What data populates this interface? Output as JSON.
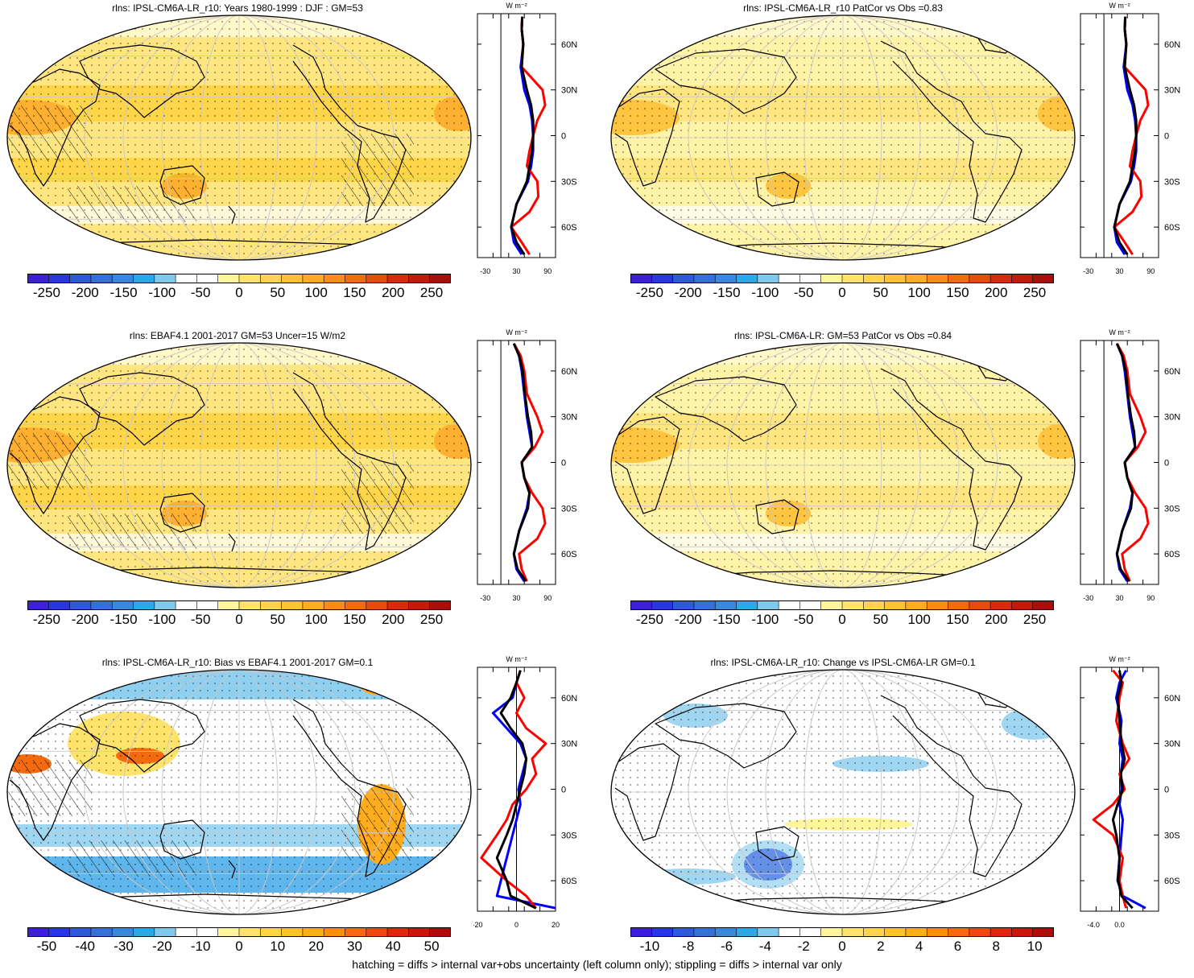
{
  "footer": "hatching = diffs > internal var+obs uncertainty (left column only); stippling = diffs > internal var only",
  "colors": {
    "model_line": "#0000ff",
    "obs_line": "#ff0000",
    "black_line": "#000000",
    "land_outline": "#000000"
  },
  "chart_data": [
    {
      "id": "p1",
      "type": "heatmap",
      "title": "rlns: IPSL-CM6A-LR_r10: Years 1980-1999 : DJF : GM=53",
      "projection": "robinson",
      "colorbar": {
        "ticks": [
          "-250",
          "-200",
          "-150",
          "-100",
          "-50",
          "0",
          "50",
          "100",
          "150",
          "200",
          "250"
        ],
        "range": [
          -275,
          275
        ],
        "colors": [
          "#3c1fd6",
          "#2a37e0",
          "#2e5ad8",
          "#3470d8",
          "#3a87de",
          "#2aa8e8",
          "#7ec9ec",
          "#ffffff",
          "#ffffff",
          "#fff59a",
          "#ffe36a",
          "#ffd34d",
          "#ffc330",
          "#ffad1f",
          "#ff8c12",
          "#f46a0e",
          "#e84b0c",
          "#d92b0b",
          "#c41a0b",
          "#aa0e0b"
        ]
      },
      "zonal": {
        "unit": "W m⁻²",
        "xticks": [
          "-30",
          "30",
          "90"
        ],
        "xrange": [
          -45,
          105
        ],
        "yticks": [
          "60N",
          "30N",
          "0",
          "30S",
          "60S"
        ],
        "ylim": [
          -80,
          80
        ]
      }
    },
    {
      "id": "p2",
      "type": "heatmap",
      "title": "rlns: IPSL-CM6A-LR_r10 PatCor vs Obs =0.83",
      "projection": "robinson",
      "colorbar": {
        "ticks": [
          "-250",
          "-200",
          "-150",
          "-100",
          "-50",
          "0",
          "50",
          "100",
          "150",
          "200",
          "250"
        ],
        "range": [
          -275,
          275
        ],
        "colors": [
          "#3c1fd6",
          "#2a37e0",
          "#2e5ad8",
          "#3470d8",
          "#3a87de",
          "#2aa8e8",
          "#7ec9ec",
          "#ffffff",
          "#ffffff",
          "#fff59a",
          "#ffe36a",
          "#ffd34d",
          "#ffc330",
          "#ffad1f",
          "#ff8c12",
          "#f46a0e",
          "#e84b0c",
          "#d92b0b",
          "#c41a0b",
          "#aa0e0b"
        ]
      },
      "zonal": {
        "unit": "W m⁻²",
        "xticks": [
          "-30",
          "30",
          "90"
        ],
        "xrange": [
          -45,
          105
        ],
        "yticks": [
          "60N",
          "30N",
          "0",
          "30S",
          "60S"
        ],
        "ylim": [
          -80,
          80
        ]
      }
    },
    {
      "id": "p3",
      "type": "heatmap",
      "title": "rlns: EBAF4.1 2001-2017 GM=53 Uncer=15 W/m2",
      "projection": "robinson",
      "colorbar": {
        "ticks": [
          "-250",
          "-200",
          "-150",
          "-100",
          "-50",
          "0",
          "50",
          "100",
          "150",
          "200",
          "250"
        ],
        "range": [
          -275,
          275
        ],
        "colors": [
          "#3c1fd6",
          "#2a37e0",
          "#2e5ad8",
          "#3470d8",
          "#3a87de",
          "#2aa8e8",
          "#7ec9ec",
          "#ffffff",
          "#ffffff",
          "#fff59a",
          "#ffe36a",
          "#ffd34d",
          "#ffc330",
          "#ffad1f",
          "#ff8c12",
          "#f46a0e",
          "#e84b0c",
          "#d92b0b",
          "#c41a0b",
          "#aa0e0b"
        ]
      },
      "zonal": {
        "unit": "W m⁻²",
        "xticks": [
          "-30",
          "30",
          "90"
        ],
        "xrange": [
          -45,
          105
        ],
        "yticks": [
          "60N",
          "30N",
          "0",
          "30S",
          "60S"
        ],
        "ylim": [
          -80,
          80
        ]
      }
    },
    {
      "id": "p4",
      "type": "heatmap",
      "title": "rlns: IPSL-CM6A-LR: GM=53 PatCor vs Obs =0.84",
      "projection": "robinson",
      "colorbar": {
        "ticks": [
          "-250",
          "-200",
          "-150",
          "-100",
          "-50",
          "0",
          "50",
          "100",
          "150",
          "200",
          "250"
        ],
        "range": [
          -275,
          275
        ],
        "colors": [
          "#3c1fd6",
          "#2a37e0",
          "#2e5ad8",
          "#3470d8",
          "#3a87de",
          "#2aa8e8",
          "#7ec9ec",
          "#ffffff",
          "#ffffff",
          "#fff59a",
          "#ffe36a",
          "#ffd34d",
          "#ffc330",
          "#ffad1f",
          "#ff8c12",
          "#f46a0e",
          "#e84b0c",
          "#d92b0b",
          "#c41a0b",
          "#aa0e0b"
        ]
      },
      "zonal": {
        "unit": "W m⁻²",
        "xticks": [
          "-30",
          "30",
          "90"
        ],
        "xrange": [
          -45,
          105
        ],
        "yticks": [
          "60N",
          "30N",
          "0",
          "30S",
          "60S"
        ],
        "ylim": [
          -80,
          80
        ]
      }
    },
    {
      "id": "p5",
      "type": "heatmap",
      "title": "rlns: IPSL-CM6A-LR_r10: Bias vs EBAF4.1 2001-2017 GM=0.1",
      "projection": "robinson",
      "colorbar": {
        "ticks": [
          "-50",
          "-40",
          "-30",
          "-20",
          "-10",
          "0",
          "10",
          "20",
          "30",
          "40",
          "50"
        ],
        "range": [
          -55,
          55
        ],
        "colors": [
          "#3c1fd6",
          "#2a37e0",
          "#2e5ad8",
          "#3470d8",
          "#3a87de",
          "#2aa8e8",
          "#7ec9ec",
          "#ffffff",
          "#ffffff",
          "#fff59a",
          "#ffe36a",
          "#ffd34d",
          "#ffc330",
          "#ffad1f",
          "#ff8c12",
          "#f46a0e",
          "#e84b0c",
          "#d92b0b",
          "#c41a0b",
          "#aa0e0b"
        ]
      },
      "zonal": {
        "unit": "W m⁻²",
        "xticks": [
          "-20",
          "0",
          "20"
        ],
        "xrange": [
          -20,
          20
        ],
        "yticks": [
          "60N",
          "30N",
          "0",
          "30S",
          "60S"
        ],
        "ylim": [
          -80,
          80
        ]
      }
    },
    {
      "id": "p6",
      "type": "heatmap",
      "title": "rlns: IPSL-CM6A-LR_r10: Change vs IPSL-CM6A-LR GM=0.1",
      "projection": "robinson",
      "colorbar": {
        "ticks": [
          "-10",
          "-8",
          "-6",
          "-4",
          "-2",
          "0",
          "2",
          "4",
          "6",
          "8",
          "10"
        ],
        "range": [
          -11,
          11
        ],
        "colors": [
          "#3c1fd6",
          "#2a37e0",
          "#2e5ad8",
          "#3470d8",
          "#3a87de",
          "#2aa8e8",
          "#7ec9ec",
          "#ffffff",
          "#ffffff",
          "#fff59a",
          "#ffe36a",
          "#ffd34d",
          "#ffc330",
          "#ffad1f",
          "#ff8c12",
          "#f46a0e",
          "#e84b0c",
          "#d92b0b",
          "#c41a0b",
          "#aa0e0b"
        ]
      },
      "zonal": {
        "unit": "W m⁻²",
        "xticks": [
          "-4.0",
          "0.0"
        ],
        "xrange": [
          -6,
          6
        ],
        "yticks": [
          "60N",
          "30N",
          "0",
          "30S",
          "60S"
        ],
        "ylim": [
          -80,
          80
        ]
      }
    }
  ]
}
